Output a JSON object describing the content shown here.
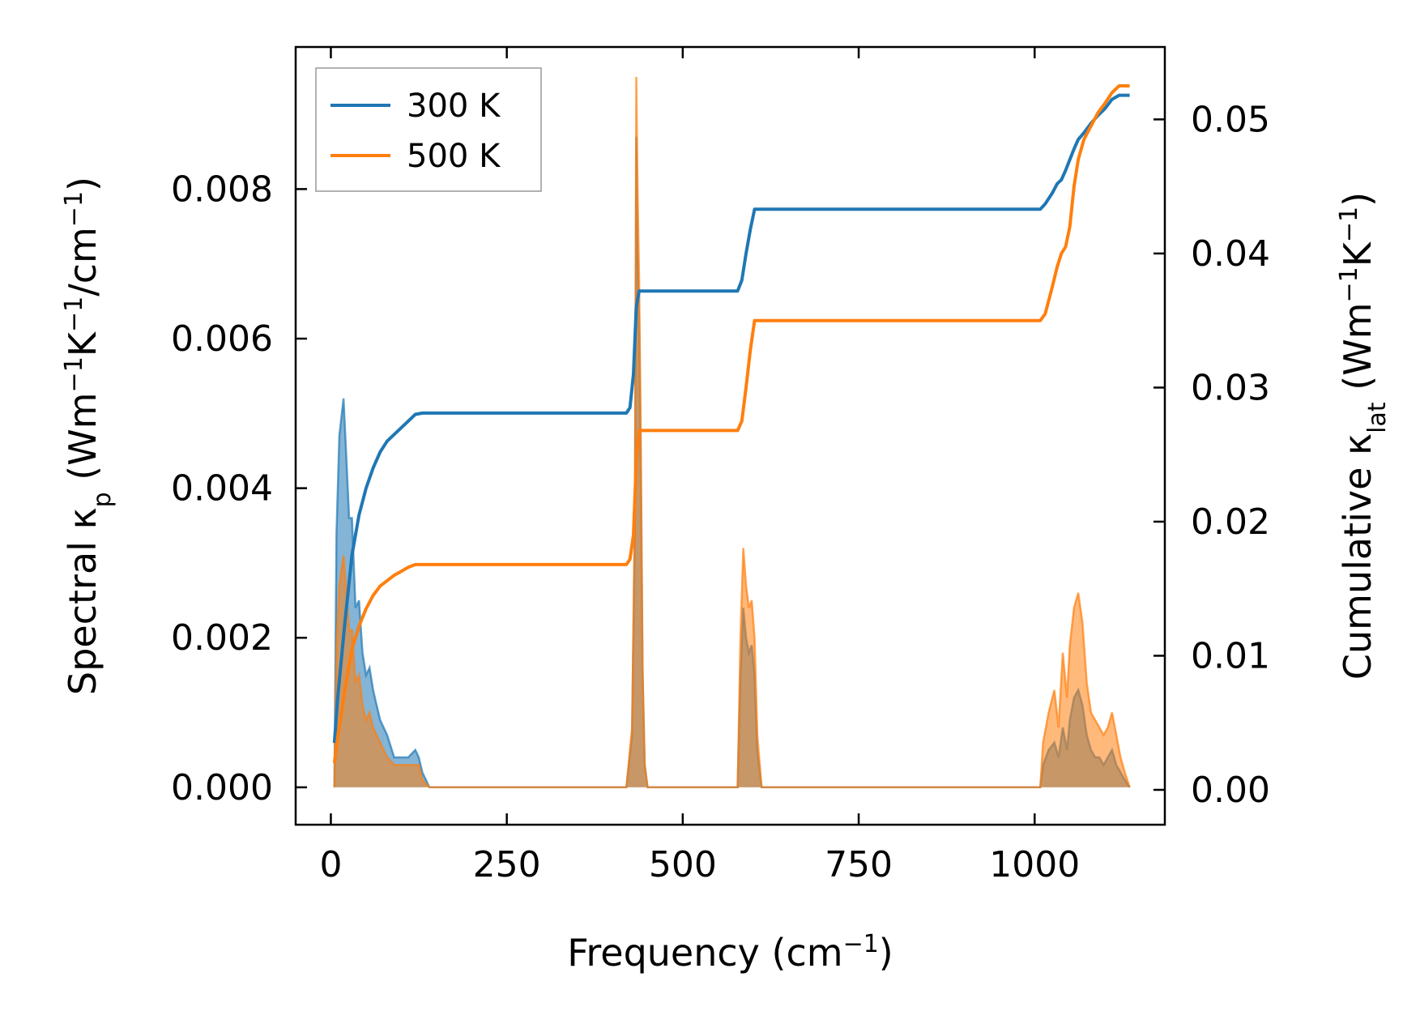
{
  "chart_data": {
    "type": "area",
    "title": "",
    "xlabel": {
      "main": "Frequency (cm",
      "sup": "−1",
      "tail": ")"
    },
    "ylabel_left": {
      "main": "Spectral κ",
      "sub": "p",
      "tail": [
        " (Wm",
        "−1",
        "K",
        "−1",
        "/cm",
        "−1",
        ")"
      ]
    },
    "ylabel_right": {
      "main": "Cumulative κ",
      "sub": "lat",
      "tail": [
        " (Wm",
        "−1",
        "K",
        "−1",
        ")"
      ]
    },
    "xlim": [
      -50,
      1185
    ],
    "ylim_left": [
      -0.0005,
      0.0099
    ],
    "ylim_right": [
      -0.0026,
      0.0554
    ],
    "xticks": [
      0,
      250,
      500,
      750,
      1000
    ],
    "xtick_labels": [
      "0",
      "250",
      "500",
      "750",
      "1000"
    ],
    "yticks_left": [
      0,
      0.002,
      0.004,
      0.006,
      0.008
    ],
    "ytick_labels_left": [
      "0.000",
      "0.002",
      "0.004",
      "0.006",
      "0.008"
    ],
    "yticks_right": [
      0,
      0.01,
      0.02,
      0.03,
      0.04,
      0.05
    ],
    "ytick_labels_right": [
      "0.00",
      "0.01",
      "0.02",
      "0.03",
      "0.04",
      "0.05"
    ],
    "legend": {
      "position": "top-left",
      "entries": [
        "300 K",
        "500 K"
      ]
    },
    "colors": {
      "300 K": "#1f77b4",
      "500 K": "#ff7f0e"
    },
    "series": [
      {
        "name": "300 K",
        "spectral": {
          "x": [
            5,
            8,
            12,
            18,
            22,
            26,
            30,
            35,
            40,
            45,
            50,
            55,
            60,
            65,
            70,
            80,
            90,
            100,
            110,
            120,
            125,
            130,
            140,
            200,
            300,
            420,
            428,
            432,
            434,
            436,
            438,
            440,
            443,
            446,
            450,
            500,
            578,
            582,
            586,
            590,
            594,
            598,
            602,
            606,
            612,
            700,
            850,
            1008,
            1012,
            1020,
            1028,
            1034,
            1040,
            1046,
            1050,
            1056,
            1062,
            1068,
            1074,
            1080,
            1086,
            1092,
            1098,
            1104,
            1110,
            1116,
            1122,
            1128,
            1135
          ],
          "y": [
            0,
            0.0034,
            0.0047,
            0.0052,
            0.0044,
            0.0036,
            0.0036,
            0.0024,
            0.0025,
            0.0018,
            0.0015,
            0.0016,
            0.0013,
            0.0011,
            0.0009,
            0.0007,
            0.0004,
            0.0004,
            0.0004,
            0.0005,
            0.0004,
            0.0002,
            0,
            0,
            0,
            0,
            0.0007,
            0.0035,
            0.0087,
            0.0072,
            0.0062,
            0.0047,
            0.0015,
            0.0003,
            0,
            0,
            0,
            0.0015,
            0.0024,
            0.002,
            0.0018,
            0.0019,
            0.0015,
            0.0005,
            0,
            0,
            0,
            0,
            0.0003,
            0.0005,
            0.0006,
            0.0004,
            0.0008,
            0.0005,
            0.0009,
            0.0012,
            0.0013,
            0.0011,
            0.0007,
            0.0005,
            0.0004,
            0.0004,
            0.0003,
            0.0004,
            0.0005,
            0.0003,
            0.0002,
            0.0001,
            0
          ]
        },
        "cumulative": {
          "x": [
            5,
            10,
            20,
            30,
            40,
            50,
            60,
            70,
            80,
            90,
            100,
            110,
            120,
            130,
            420,
            425,
            430,
            434,
            438,
            445,
            578,
            584,
            590,
            596,
            602,
            1008,
            1015,
            1025,
            1032,
            1038,
            1044,
            1050,
            1056,
            1062,
            1070,
            1080,
            1090,
            1100,
            1110,
            1120,
            1135
          ],
          "y": [
            0.0035,
            0.007,
            0.0125,
            0.0175,
            0.0205,
            0.0225,
            0.024,
            0.0252,
            0.026,
            0.0265,
            0.027,
            0.0275,
            0.028,
            0.0281,
            0.0281,
            0.0285,
            0.031,
            0.036,
            0.0372,
            0.0372,
            0.0372,
            0.038,
            0.04,
            0.0418,
            0.0433,
            0.0433,
            0.0437,
            0.0445,
            0.0452,
            0.0455,
            0.0462,
            0.047,
            0.0478,
            0.0485,
            0.049,
            0.0497,
            0.0503,
            0.0508,
            0.0515,
            0.0518,
            0.0518
          ]
        }
      },
      {
        "name": "500 K",
        "spectral": {
          "x": [
            5,
            8,
            12,
            18,
            22,
            26,
            30,
            35,
            40,
            45,
            50,
            55,
            60,
            65,
            70,
            80,
            90,
            100,
            110,
            120,
            125,
            130,
            140,
            200,
            300,
            420,
            428,
            432,
            434,
            436,
            438,
            440,
            443,
            446,
            450,
            500,
            578,
            582,
            586,
            590,
            594,
            598,
            602,
            606,
            612,
            700,
            850,
            1008,
            1012,
            1020,
            1028,
            1034,
            1040,
            1046,
            1050,
            1056,
            1062,
            1068,
            1074,
            1080,
            1086,
            1092,
            1098,
            1104,
            1110,
            1116,
            1122,
            1128,
            1135
          ],
          "y": [
            0,
            0.0019,
            0.0027,
            0.0031,
            0.0026,
            0.0021,
            0.0021,
            0.0014,
            0.0015,
            0.0011,
            0.0009,
            0.001,
            0.0008,
            0.0007,
            0.0006,
            0.0004,
            0.0003,
            0.0003,
            0.0003,
            0.0003,
            0.0003,
            0.0001,
            0,
            0,
            0,
            0,
            0.0008,
            0.0038,
            0.0095,
            0.0079,
            0.0068,
            0.0051,
            0.0016,
            0.0003,
            0,
            0,
            0,
            0.002,
            0.0032,
            0.0027,
            0.0024,
            0.0025,
            0.002,
            0.0007,
            0,
            0,
            0,
            0,
            0.0006,
            0.001,
            0.0013,
            0.0008,
            0.0018,
            0.0012,
            0.0019,
            0.0024,
            0.0026,
            0.0022,
            0.0014,
            0.001,
            0.0009,
            0.0008,
            0.0007,
            0.0008,
            0.001,
            0.0007,
            0.0004,
            0.0002,
            0
          ]
        },
        "cumulative": {
          "x": [
            5,
            10,
            20,
            30,
            40,
            50,
            60,
            70,
            80,
            90,
            100,
            110,
            120,
            130,
            420,
            425,
            430,
            434,
            438,
            445,
            578,
            584,
            590,
            596,
            602,
            1008,
            1015,
            1025,
            1032,
            1038,
            1044,
            1050,
            1056,
            1062,
            1070,
            1080,
            1090,
            1100,
            1110,
            1120,
            1135
          ],
          "y": [
            0.002,
            0.004,
            0.0075,
            0.0105,
            0.0122,
            0.0135,
            0.0145,
            0.0152,
            0.0156,
            0.016,
            0.0163,
            0.0166,
            0.0168,
            0.0168,
            0.0168,
            0.0172,
            0.019,
            0.0245,
            0.0268,
            0.0268,
            0.0268,
            0.0275,
            0.03,
            0.0328,
            0.035,
            0.035,
            0.0355,
            0.0375,
            0.039,
            0.04,
            0.0405,
            0.042,
            0.045,
            0.047,
            0.0485,
            0.0495,
            0.0505,
            0.0512,
            0.052,
            0.0525,
            0.0525
          ]
        }
      }
    ]
  }
}
